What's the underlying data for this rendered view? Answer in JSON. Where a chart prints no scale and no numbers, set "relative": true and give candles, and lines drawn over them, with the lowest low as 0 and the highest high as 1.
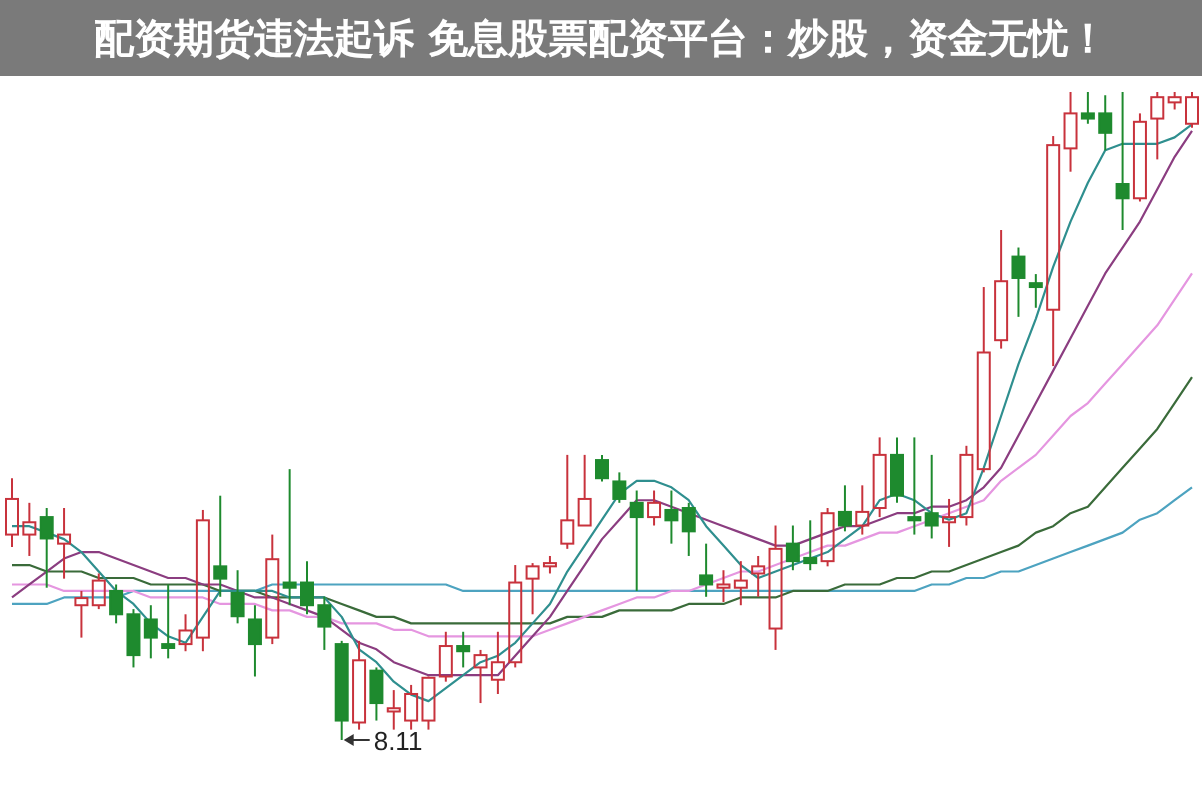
{
  "chart_data": {
    "type": "candlestick",
    "title": "配资期货违法起诉 免息股票配资平台：炒股，资金无忧！",
    "relative": true,
    "categories": [
      null,
      null,
      null,
      null,
      null,
      null,
      null,
      null,
      null,
      null,
      null,
      null,
      null,
      null,
      null,
      null,
      null,
      null,
      null,
      null,
      null,
      null,
      null,
      null,
      null,
      null,
      null,
      null,
      null,
      null,
      null,
      null,
      null,
      null,
      null,
      null,
      null,
      null,
      null,
      null,
      null,
      null,
      null,
      null,
      null,
      null,
      null,
      null,
      null,
      null,
      null,
      null,
      null,
      null,
      null,
      null,
      null,
      null,
      null,
      null,
      null,
      null,
      null,
      null,
      null,
      null,
      null,
      null,
      null
    ],
    "ohlc": [
      [
        0.317,
        0.404,
        0.298,
        0.372
      ],
      [
        0.317,
        0.366,
        0.284,
        0.336
      ],
      [
        0.344,
        0.358,
        0.235,
        0.311
      ],
      [
        0.303,
        0.358,
        0.249,
        0.317
      ],
      [
        0.208,
        0.23,
        0.158,
        0.219
      ],
      [
        0.208,
        0.257,
        0.202,
        0.246
      ],
      [
        0.23,
        0.24,
        0.18,
        0.194
      ],
      [
        0.194,
        0.202,
        0.112,
        0.131
      ],
      [
        0.186,
        0.208,
        0.126,
        0.158
      ],
      [
        0.148,
        0.24,
        0.126,
        0.142
      ],
      [
        0.148,
        0.194,
        0.137,
        0.169
      ],
      [
        0.158,
        0.355,
        0.137,
        0.339
      ],
      [
        0.268,
        0.377,
        0.221,
        0.249
      ],
      [
        0.227,
        0.262,
        0.18,
        0.191
      ],
      [
        0.186,
        0.208,
        0.098,
        0.148
      ],
      [
        0.158,
        0.317,
        0.148,
        0.279
      ],
      [
        0.243,
        0.418,
        0.208,
        0.235
      ],
      [
        0.243,
        0.276,
        0.194,
        0.208
      ],
      [
        0.208,
        0.221,
        0.139,
        0.175
      ],
      [
        0.148,
        0.153,
        0,
        0.03
      ],
      [
        0.027,
        0.153,
        0.016,
        0.123
      ],
      [
        0.107,
        0.112,
        0.03,
        0.057
      ],
      [
        0.044,
        0.077,
        0.016,
        0.049
      ],
      [
        0.03,
        0.085,
        0.016,
        0.071
      ],
      [
        0.03,
        0.098,
        0.016,
        0.096
      ],
      [
        0.098,
        0.167,
        0.09,
        0.145
      ],
      [
        0.145,
        0.167,
        0.112,
        0.137
      ],
      [
        0.112,
        0.139,
        0.057,
        0.131
      ],
      [
        0.093,
        0.167,
        0.071,
        0.12
      ],
      [
        0.12,
        0.27,
        0.112,
        0.243
      ],
      [
        0.249,
        0.273,
        0.194,
        0.268
      ],
      [
        0.268,
        0.284,
        0.257,
        0.273
      ],
      [
        0.303,
        0.44,
        0.295,
        0.339
      ],
      [
        0.331,
        0.44,
        0.331,
        0.372
      ],
      [
        0.432,
        0.44,
        0.399,
        0.404
      ],
      [
        0.399,
        0.413,
        0.366,
        0.372
      ],
      [
        0.366,
        0.385,
        0.23,
        0.344
      ],
      [
        0.344,
        0.385,
        0.331,
        0.366
      ],
      [
        0.355,
        0.385,
        0.303,
        0.339
      ],
      [
        0.358,
        0.366,
        0.284,
        0.322
      ],
      [
        0.254,
        0.303,
        0.221,
        0.24
      ],
      [
        0.235,
        0.262,
        0.213,
        0.24
      ],
      [
        0.235,
        0.276,
        0.208,
        0.246
      ],
      [
        0.257,
        0.284,
        0.221,
        0.268
      ],
      [
        0.172,
        0.331,
        0.139,
        0.295
      ],
      [
        0.303,
        0.331,
        0.262,
        0.276
      ],
      [
        0.281,
        0.339,
        0.262,
        0.273
      ],
      [
        0.276,
        0.358,
        0.268,
        0.35
      ],
      [
        0.352,
        0.393,
        0.322,
        0.331
      ],
      [
        0.331,
        0.393,
        0.317,
        0.352
      ],
      [
        0.358,
        0.467,
        0.344,
        0.44
      ],
      [
        0.44,
        0.467,
        0.366,
        0.377
      ],
      [
        0.344,
        0.467,
        0.317,
        0.339
      ],
      [
        0.35,
        0.44,
        0.311,
        0.331
      ],
      [
        0.336,
        0.372,
        0.298,
        0.344
      ],
      [
        0.344,
        0.454,
        0.331,
        0.44
      ],
      [
        0.418,
        0.699,
        0.413,
        0.598
      ],
      [
        0.617,
        0.787,
        0.604,
        0.708
      ],
      [
        0.746,
        0.76,
        0.653,
        0.713
      ],
      [
        0.705,
        0.719,
        0.667,
        0.699
      ],
      [
        0.664,
        0.932,
        0.577,
        0.918
      ],
      [
        0.913,
        1,
        0.877,
        0.967
      ],
      [
        0.967,
        1,
        0.951,
        0.959
      ],
      [
        0.967,
        0.995,
        0.91,
        0.937
      ],
      [
        0.858,
        1,
        0.787,
        0.836
      ],
      [
        0.836,
        0.967,
        0.831,
        0.954
      ],
      [
        0.959,
        1,
        0.896,
        0.992
      ],
      [
        0.984,
        1,
        0.973,
        0.992
      ],
      [
        0.951,
        1,
        0.945,
        0.992
      ]
    ],
    "colors": [
      "#c8323c",
      "#c8323c",
      "#1e8a2e",
      "#c8323c",
      "#c8323c",
      "#c8323c",
      "#1e8a2e",
      "#1e8a2e",
      "#1e8a2e",
      "#1e8a2e",
      "#c8323c",
      "#c8323c",
      "#1e8a2e",
      "#1e8a2e",
      "#1e8a2e",
      "#c8323c",
      "#1e8a2e",
      "#1e8a2e",
      "#1e8a2e",
      "#1e8a2e",
      "#c8323c",
      "#1e8a2e",
      "#c8323c",
      "#c8323c",
      "#c8323c",
      "#c8323c",
      "#1e8a2e",
      "#c8323c",
      "#c8323c",
      "#c8323c",
      "#c8323c",
      "#c8323c",
      "#c8323c",
      "#c8323c",
      "#1e8a2e",
      "#1e8a2e",
      "#1e8a2e",
      "#c8323c",
      "#1e8a2e",
      "#1e8a2e",
      "#1e8a2e",
      "#c8323c",
      "#c8323c",
      "#c8323c",
      "#c8323c",
      "#1e8a2e",
      "#1e8a2e",
      "#c8323c",
      "#1e8a2e",
      "#c8323c",
      "#c8323c",
      "#1e8a2e",
      "#1e8a2e",
      "#1e8a2e",
      "#c8323c",
      "#c8323c",
      "#c8323c",
      "#c8323c",
      "#1e8a2e",
      "#1e8a2e",
      "#c8323c",
      "#c8323c",
      "#1e8a2e",
      "#1e8a2e",
      "#1e8a2e",
      "#c8323c",
      "#c8323c",
      "#c8323c",
      "#c8323c"
    ],
    "series": [
      {
        "type": "line",
        "color": "#4da3c0",
        "values": [
          0.21,
          0.21,
          0.21,
          0.22,
          0.22,
          0.22,
          0.22,
          0.23,
          0.23,
          0.23,
          0.23,
          0.23,
          0.23,
          0.23,
          0.23,
          0.24,
          0.24,
          0.24,
          0.24,
          0.24,
          0.24,
          0.24,
          0.24,
          0.24,
          0.24,
          0.24,
          0.23,
          0.23,
          0.23,
          0.23,
          0.23,
          0.23,
          0.23,
          0.23,
          0.23,
          0.23,
          0.23,
          0.23,
          0.23,
          0.23,
          0.23,
          0.23,
          0.23,
          0.23,
          0.23,
          0.23,
          0.23,
          0.23,
          0.23,
          0.23,
          0.23,
          0.23,
          0.23,
          0.24,
          0.24,
          0.25,
          0.25,
          0.26,
          0.26,
          0.27,
          0.28,
          0.29,
          0.3,
          0.31,
          0.32,
          0.34,
          0.35,
          0.37,
          0.39
        ]
      },
      {
        "type": "line",
        "color": "#3a6b3a",
        "values": [
          0.27,
          0.27,
          0.26,
          0.26,
          0.26,
          0.25,
          0.25,
          0.25,
          0.24,
          0.24,
          0.24,
          0.24,
          0.23,
          0.23,
          0.23,
          0.22,
          0.22,
          0.22,
          0.22,
          0.21,
          0.2,
          0.19,
          0.19,
          0.18,
          0.18,
          0.18,
          0.18,
          0.18,
          0.18,
          0.18,
          0.18,
          0.18,
          0.19,
          0.19,
          0.19,
          0.2,
          0.2,
          0.2,
          0.2,
          0.21,
          0.21,
          0.21,
          0.22,
          0.22,
          0.22,
          0.23,
          0.23,
          0.23,
          0.24,
          0.24,
          0.24,
          0.25,
          0.25,
          0.26,
          0.26,
          0.27,
          0.28,
          0.29,
          0.3,
          0.32,
          0.33,
          0.35,
          0.36,
          0.39,
          0.42,
          0.45,
          0.48,
          0.52,
          0.56
        ]
      },
      {
        "type": "line",
        "color": "#e596e0",
        "values": [
          0.24,
          0.24,
          0.24,
          0.23,
          0.23,
          0.23,
          0.23,
          0.23,
          0.22,
          0.22,
          0.22,
          0.22,
          0.21,
          0.21,
          0.21,
          0.2,
          0.2,
          0.19,
          0.19,
          0.18,
          0.18,
          0.18,
          0.17,
          0.17,
          0.16,
          0.16,
          0.16,
          0.16,
          0.16,
          0.16,
          0.16,
          0.17,
          0.18,
          0.19,
          0.2,
          0.21,
          0.22,
          0.22,
          0.23,
          0.23,
          0.24,
          0.25,
          0.26,
          0.26,
          0.27,
          0.28,
          0.29,
          0.3,
          0.3,
          0.31,
          0.32,
          0.32,
          0.33,
          0.34,
          0.35,
          0.36,
          0.37,
          0.4,
          0.42,
          0.44,
          0.47,
          0.5,
          0.52,
          0.55,
          0.58,
          0.61,
          0.64,
          0.68,
          0.72
        ]
      },
      {
        "type": "line",
        "color": "#8b3d80",
        "values": [
          0.22,
          0.24,
          0.26,
          0.28,
          0.29,
          0.29,
          0.28,
          0.27,
          0.26,
          0.25,
          0.25,
          0.24,
          0.24,
          0.23,
          0.22,
          0.22,
          0.21,
          0.2,
          0.19,
          0.17,
          0.15,
          0.14,
          0.12,
          0.11,
          0.1,
          0.1,
          0.1,
          0.1,
          0.1,
          0.13,
          0.16,
          0.19,
          0.23,
          0.27,
          0.31,
          0.34,
          0.37,
          0.37,
          0.36,
          0.35,
          0.34,
          0.33,
          0.32,
          0.31,
          0.3,
          0.3,
          0.31,
          0.32,
          0.33,
          0.33,
          0.34,
          0.35,
          0.35,
          0.36,
          0.36,
          0.37,
          0.39,
          0.42,
          0.47,
          0.52,
          0.57,
          0.62,
          0.67,
          0.72,
          0.76,
          0.8,
          0.85,
          0.9,
          0.94
        ]
      },
      {
        "type": "line",
        "color": "#2f8f8f",
        "values": [
          0.33,
          0.33,
          0.32,
          0.31,
          0.29,
          0.26,
          0.23,
          0.21,
          0.18,
          0.16,
          0.15,
          0.19,
          0.23,
          0.23,
          0.23,
          0.23,
          0.22,
          0.22,
          0.22,
          0.19,
          0.14,
          0.12,
          0.09,
          0.07,
          0.06,
          0.08,
          0.1,
          0.12,
          0.13,
          0.15,
          0.18,
          0.21,
          0.26,
          0.3,
          0.34,
          0.38,
          0.4,
          0.4,
          0.39,
          0.37,
          0.33,
          0.3,
          0.27,
          0.25,
          0.26,
          0.27,
          0.28,
          0.29,
          0.31,
          0.33,
          0.37,
          0.38,
          0.37,
          0.35,
          0.34,
          0.35,
          0.42,
          0.5,
          0.58,
          0.65,
          0.73,
          0.8,
          0.86,
          0.91,
          0.92,
          0.92,
          0.92,
          0.93,
          0.95
        ]
      }
    ],
    "annotations": [
      "8.11"
    ]
  }
}
